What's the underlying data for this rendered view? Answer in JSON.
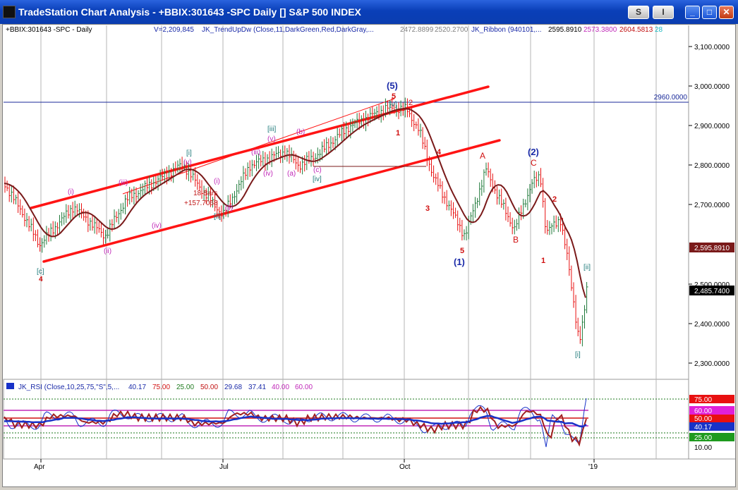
{
  "window": {
    "title": "TradeStation Chart Analysis - +BBIX:301643 -SPC Daily [] S&P 500 INDEX",
    "buttons": [
      "S",
      "I",
      "_",
      "□",
      "✕"
    ]
  },
  "legend": {
    "symbol": "+BBIX:301643 -SPC - Daily",
    "volume": "V=2,209,845",
    "trend": "JK_TrendUpDw (Close,11,DarkGreen,Red,DarkGray,...",
    "trend_v1": "2472.8899",
    "trend_v2": "2520.2700",
    "ribbon": "JK_Ribbon (940101,...",
    "ribbon_v1": "2595.8910",
    "ribbon_v2": "2573.3800",
    "ribbon_v3": "2604.5813",
    "ribbon_v4": "28"
  },
  "price_axis": {
    "ticks": [
      "3,100.0000",
      "3,000.0000",
      "2,900.0000",
      "2,800.0000",
      "2,700.0000",
      "2,600.0000",
      "2,500.0000",
      "2,400.0000",
      "2,300.0000"
    ],
    "tag_ma": "2,595.8910",
    "tag_last": "2,485.7400",
    "hline_label": "2960.0000"
  },
  "rsi": {
    "legend_name": "JK_RSI (Close,10,25,75,\"S\",5,...",
    "v1": "40.17",
    "v2": "75.00",
    "v3": "25.00",
    "v4": "50.00",
    "v5": "29.68",
    "v6": "37.41",
    "v7": "40.00",
    "v8": "60.00",
    "axis": {
      "t75": "75.00",
      "t60": "60.00",
      "t50": "50.00",
      "tcur": "40.17",
      "t25": "25.00",
      "t10": "10.00"
    }
  },
  "time_axis": [
    "Apr",
    "Jul",
    "Oct",
    "'19"
  ],
  "wave_labels": {
    "bracket_c": "[c]",
    "red_4": "4",
    "ii_low": "(ii)",
    "i_small": "(i)",
    "iii_small": "(iii)",
    "bracket_i": "[i]",
    "v_small": "(v)",
    "iv_small": "(iv)",
    "bars": "18 Bars",
    "gain": "+157.7068",
    "ii_jul": "(ii)",
    "bracket_ii": "[ii]",
    "iii_jul": "(iii)",
    "i_jul": "(i)",
    "iv_jul": "(iv)",
    "bracket_iii": "[iii]",
    "v_jul": "(v)",
    "a_jul": "(a)",
    "c_jul": "(c)",
    "bracket_iv": "[iv]",
    "b_aug": "(b)",
    "wave5": "(5)",
    "red5": "5",
    "bracket_v": "[v]",
    "red2": "2",
    "red1": "1",
    "red4": "4",
    "red3": "3",
    "red5_low": "5",
    "wave1": "(1)",
    "a": "A",
    "b": "B",
    "c": "C",
    "wave2": "(2)",
    "red2_dec": "2",
    "red1_dec": "1",
    "bracket_i_dec": "[i]",
    "bracket_ii_dec": "[ii]"
  },
  "colors": {
    "ribbon": "#7a1a1a",
    "channel": "#ff1414",
    "up_bar": "#1f7a3a",
    "down_bar": "#e81010",
    "rsi_blue": "#1832c8"
  }
}
